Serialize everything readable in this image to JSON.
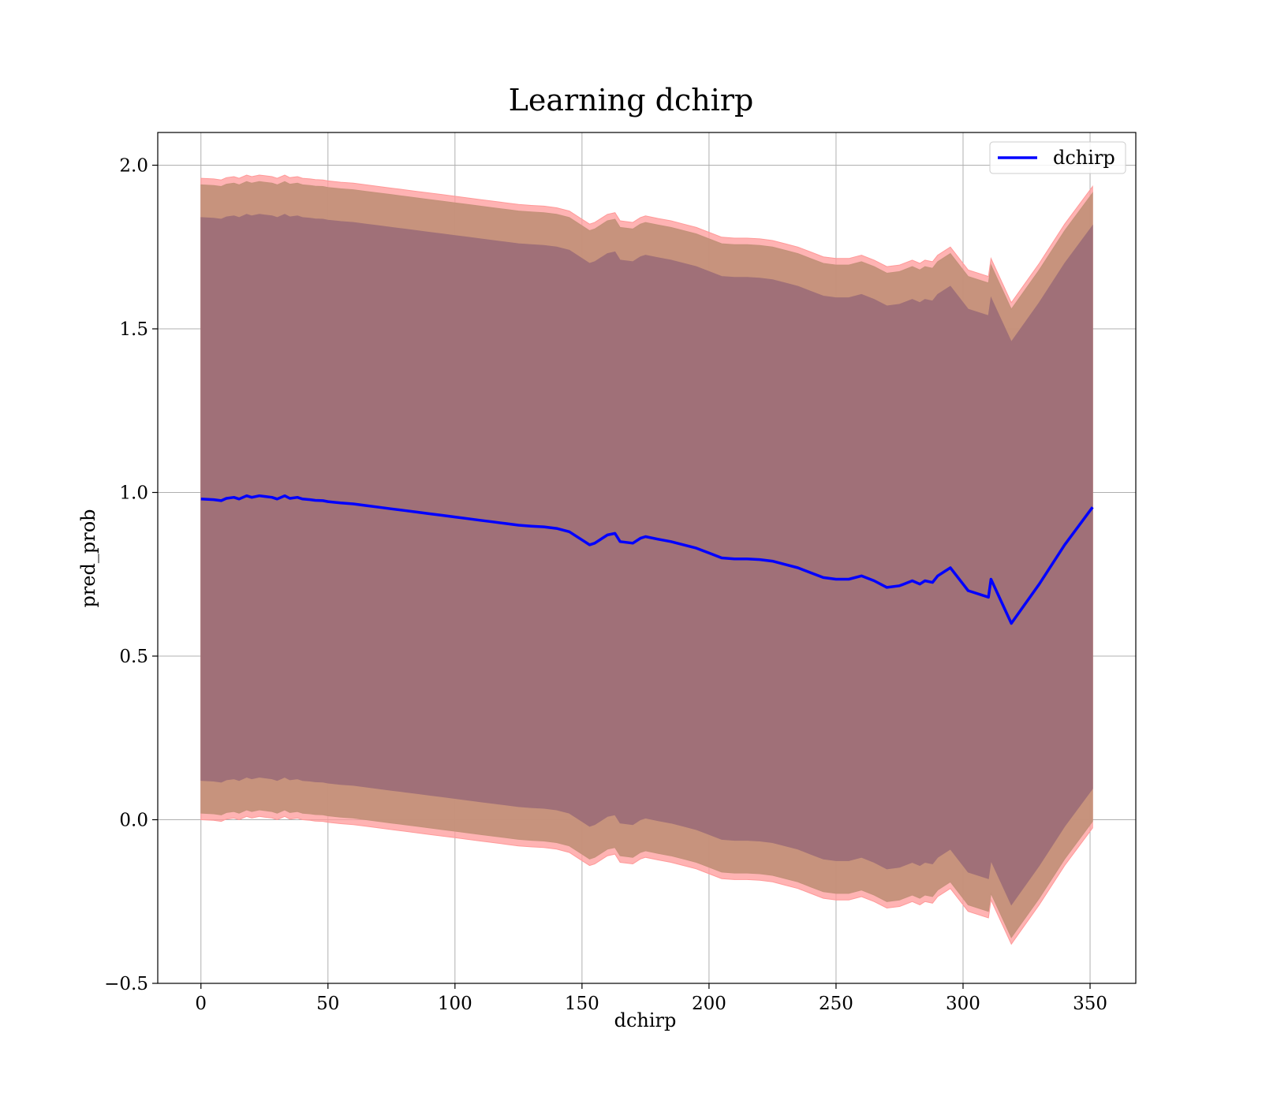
{
  "chart_data": {
    "type": "area",
    "title": "Learning dchirp",
    "xlabel": "dchirp",
    "ylabel": "pred_prob",
    "xlim": [
      -17,
      368
    ],
    "ylim": [
      -0.5,
      2.1
    ],
    "xticks": [
      0,
      50,
      100,
      150,
      200,
      250,
      300,
      350
    ],
    "yticks": [
      -0.5,
      0.0,
      0.5,
      1.0,
      1.5,
      2.0
    ],
    "xtick_labels": [
      "0",
      "50",
      "100",
      "150",
      "200",
      "250",
      "300",
      "350"
    ],
    "ytick_labels": [
      "−0.5",
      "0.0",
      "0.5",
      "1.0",
      "1.5",
      "2.0"
    ],
    "grid": true,
    "legend_position": "top-right",
    "colors": {
      "line": "#0000ff",
      "outer_band": "#ff9999",
      "middle_band": "#c4917a",
      "inner_band": "#a07078"
    },
    "series": [
      {
        "name": "dchirp",
        "x": [
          0,
          5,
          8,
          10,
          13,
          15,
          18,
          20,
          23,
          25,
          28,
          30,
          33,
          35,
          38,
          40,
          43,
          45,
          48,
          50,
          55,
          60,
          65,
          70,
          75,
          80,
          85,
          90,
          95,
          100,
          105,
          110,
          115,
          120,
          125,
          130,
          135,
          140,
          145,
          150,
          153,
          155,
          160,
          163,
          165,
          170,
          173,
          175,
          180,
          185,
          190,
          195,
          200,
          205,
          210,
          215,
          220,
          225,
          230,
          235,
          240,
          245,
          250,
          255,
          260,
          265,
          270,
          275,
          280,
          283,
          285,
          288,
          290,
          293,
          295,
          300,
          302,
          310,
          311,
          319,
          330,
          340,
          351
        ],
        "y": [
          0.98,
          0.978,
          0.975,
          0.982,
          0.985,
          0.98,
          0.99,
          0.985,
          0.99,
          0.988,
          0.985,
          0.98,
          0.99,
          0.982,
          0.985,
          0.98,
          0.978,
          0.976,
          0.975,
          0.972,
          0.968,
          0.965,
          0.96,
          0.955,
          0.95,
          0.945,
          0.94,
          0.935,
          0.93,
          0.925,
          0.92,
          0.915,
          0.91,
          0.905,
          0.9,
          0.897,
          0.895,
          0.89,
          0.88,
          0.855,
          0.84,
          0.845,
          0.87,
          0.875,
          0.85,
          0.845,
          0.86,
          0.865,
          0.857,
          0.85,
          0.84,
          0.83,
          0.815,
          0.8,
          0.797,
          0.797,
          0.795,
          0.79,
          0.78,
          0.77,
          0.755,
          0.74,
          0.735,
          0.735,
          0.745,
          0.73,
          0.71,
          0.715,
          0.73,
          0.72,
          0.73,
          0.725,
          0.745,
          0.76,
          0.77,
          0.72,
          0.7,
          0.68,
          0.735,
          0.6,
          0.72,
          0.84,
          0.955
        ]
      }
    ],
    "bands": [
      {
        "name": "outer",
        "lower_offset": -0.98,
        "upper_offset": 0.98
      },
      {
        "name": "middle",
        "lower_offset": -0.96,
        "upper_offset": 0.96
      },
      {
        "name": "inner",
        "lower_offset": -0.86,
        "upper_offset": 0.86
      }
    ]
  }
}
